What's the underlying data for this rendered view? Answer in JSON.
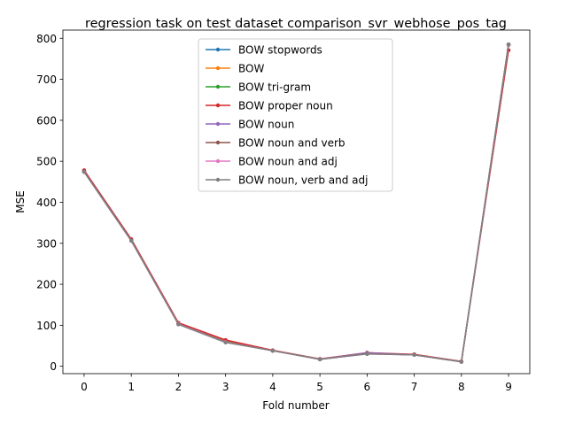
{
  "chart_data": {
    "type": "line",
    "title": "regression task on test dataset comparison_svr_webhose_pos_tag",
    "xlabel": "Fold number",
    "ylabel": "MSE",
    "x": [
      0,
      1,
      2,
      3,
      4,
      5,
      6,
      7,
      8,
      9
    ],
    "xlim": [
      -0.45,
      9.45
    ],
    "ylim": [
      -18,
      820
    ],
    "xticks": [
      "0",
      "1",
      "2",
      "3",
      "4",
      "5",
      "6",
      "7",
      "8",
      "9"
    ],
    "yticks": [
      0,
      100,
      200,
      300,
      400,
      500,
      600,
      700,
      800
    ],
    "grid": false,
    "legend_position": "upper center",
    "marker": "circle",
    "series": [
      {
        "name": "BOW stopwords",
        "color": "#1f77b4",
        "values": [
          476,
          308,
          104,
          60,
          38,
          17,
          31,
          28,
          11,
          785
        ]
      },
      {
        "name": "BOW",
        "color": "#ff7f0e",
        "values": [
          477,
          309,
          105,
          61,
          38,
          17,
          31,
          29,
          11,
          785
        ]
      },
      {
        "name": "BOW tri-gram",
        "color": "#2ca02c",
        "values": [
          476,
          308,
          104,
          60,
          38,
          17,
          31,
          28,
          11,
          785
        ]
      },
      {
        "name": "BOW proper noun",
        "color": "#d62728",
        "values": [
          478,
          310,
          106,
          64,
          39,
          18,
          33,
          29,
          12,
          771
        ]
      },
      {
        "name": "BOW noun",
        "color": "#9467bd",
        "values": [
          475,
          307,
          103,
          59,
          38,
          17,
          33,
          28,
          11,
          784
        ]
      },
      {
        "name": "BOW noun and verb",
        "color": "#8c564b",
        "values": [
          475,
          307,
          103,
          59,
          38,
          17,
          31,
          28,
          11,
          784
        ]
      },
      {
        "name": "BOW noun and adj",
        "color": "#e377c2",
        "values": [
          474,
          306,
          103,
          59,
          38,
          17,
          30,
          28,
          11,
          784
        ]
      },
      {
        "name": "BOW noun, verb and adj",
        "color": "#7f7f7f",
        "values": [
          474,
          306,
          102,
          58,
          38,
          17,
          30,
          28,
          11,
          785
        ]
      }
    ]
  }
}
